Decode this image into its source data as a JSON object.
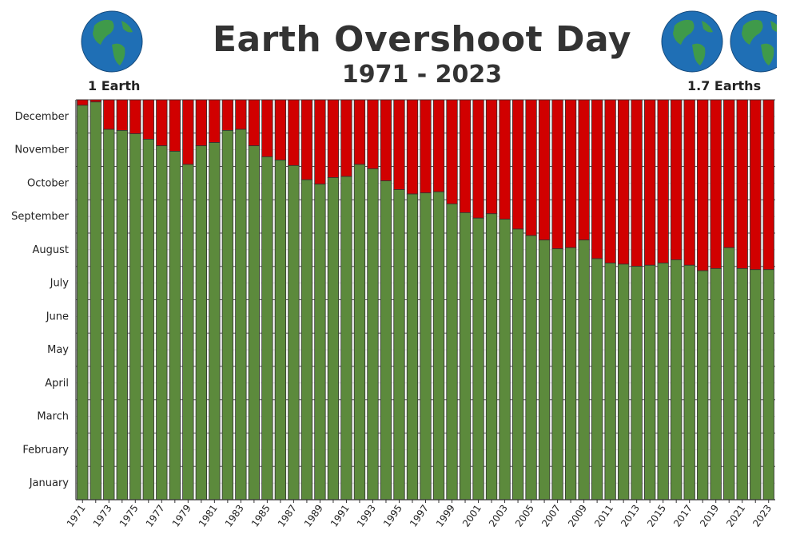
{
  "title": "Earth Overshoot Day",
  "subtitle": "1971 - 2023",
  "left_label": "1 Earth",
  "right_label": "1.7 Earths",
  "icons": {
    "globe": "earth-globe-icon"
  },
  "colors": {
    "green": "#5c8a3c",
    "red": "#d10000",
    "grid": "#555555"
  },
  "chart_data": {
    "type": "bar",
    "title": "Earth Overshoot Day",
    "subtitle": "1971 - 2023",
    "y_unit": "day of year",
    "ylim": [
      0,
      365
    ],
    "y_tick_labels": [
      "January",
      "February",
      "March",
      "April",
      "May",
      "June",
      "July",
      "August",
      "September",
      "October",
      "November",
      "December"
    ],
    "x_tick_labels": [
      "1971",
      "1973",
      "1975",
      "1977",
      "1979",
      "1981",
      "1983",
      "1985",
      "1987",
      "1989",
      "1991",
      "1993",
      "1995",
      "1997",
      "1999",
      "2001",
      "2003",
      "2005",
      "2007",
      "2009",
      "2011",
      "2013",
      "2015",
      "2017",
      "2019",
      "2021",
      "2023"
    ],
    "x": [
      1971,
      1972,
      1973,
      1974,
      1975,
      1976,
      1977,
      1978,
      1979,
      1980,
      1981,
      1982,
      1983,
      1984,
      1985,
      1986,
      1987,
      1988,
      1989,
      1990,
      1991,
      1992,
      1993,
      1994,
      1995,
      1996,
      1997,
      1998,
      1999,
      2000,
      2001,
      2002,
      2003,
      2004,
      2005,
      2006,
      2007,
      2008,
      2009,
      2010,
      2011,
      2012,
      2013,
      2014,
      2015,
      2016,
      2017,
      2018,
      2019,
      2020,
      2021,
      2022,
      2023
    ],
    "series": [
      {
        "values": [
          360,
          363,
          338,
          337,
          334,
          329,
          323,
          318,
          306,
          323,
          326,
          337,
          338,
          323,
          313,
          310,
          305,
          292,
          288,
          294,
          295,
          306,
          302,
          291,
          283,
          279,
          280,
          281,
          270,
          262,
          257,
          261,
          256,
          247,
          241,
          237,
          229,
          230,
          237,
          220,
          216,
          215,
          213,
          214,
          216,
          219,
          214,
          209,
          211,
          230,
          211,
          210,
          210
        ]
      }
    ]
  }
}
